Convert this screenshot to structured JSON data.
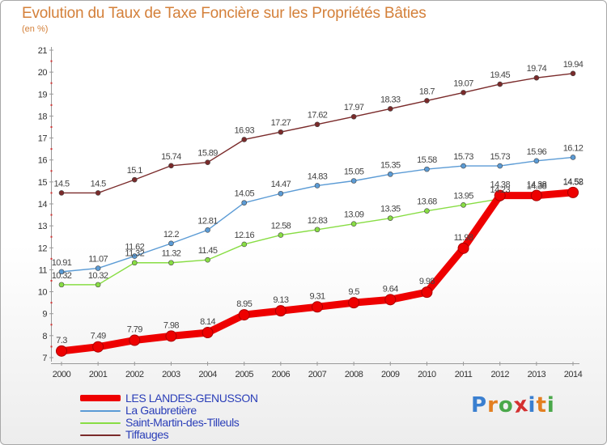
{
  "chart_data": {
    "type": "line",
    "title": "Evolution du Taux de Taxe Foncière sur les Propriétés Bâties",
    "subtitle": "(en %)",
    "x": [
      "2000",
      "2001",
      "2002",
      "2003",
      "2004",
      "2005",
      "2006",
      "2007",
      "2008",
      "2009",
      "2010",
      "2011",
      "2012",
      "2013",
      "2014"
    ],
    "ylim": [
      7,
      21
    ],
    "yticks": [
      7,
      8,
      9,
      10,
      11,
      12,
      13,
      14,
      15,
      16,
      17,
      18,
      19,
      20,
      21
    ],
    "grid": false,
    "legend_position": "bottom-left",
    "series": [
      {
        "name": "LES LANDES-GENUSSON",
        "color": "#ee0000",
        "values": [
          7.3,
          7.49,
          7.79,
          7.98,
          8.14,
          8.95,
          9.13,
          9.31,
          9.5,
          9.64,
          9.98,
          11.98,
          14.38,
          14.38,
          14.52
        ],
        "labels": [
          "7.3",
          "7.49",
          "7.79",
          "7.98",
          "8.14",
          "8.95",
          "9.13",
          "9.31",
          "9.5",
          "9.64",
          "9.98",
          "11.98",
          "14.38",
          "14.38",
          "14.52"
        ]
      },
      {
        "name": "La Gaubretière",
        "color": "#5b9bd5",
        "values": [
          10.91,
          11.07,
          11.62,
          12.2,
          12.81,
          14.05,
          14.47,
          14.83,
          15.05,
          15.35,
          15.58,
          15.73,
          15.73,
          15.96,
          16.12
        ],
        "labels": [
          "10.91",
          "11.07",
          "11.62",
          "12.2",
          "12.81",
          "14.05",
          "14.47",
          "14.83",
          "15.05",
          "15.35",
          "15.58",
          "15.73",
          "15.73",
          "15.96",
          "16.12"
        ]
      },
      {
        "name": "Saint-Martin-des-Tilleuls",
        "color": "#88dd44",
        "values": [
          10.32,
          10.32,
          11.32,
          11.32,
          11.45,
          12.16,
          12.58,
          12.83,
          13.09,
          13.35,
          13.68,
          13.95,
          14.23,
          14.38,
          14.58
        ],
        "labels": [
          "10.32",
          "10.32",
          "11.32",
          "11.32",
          "11.45",
          "12.16",
          "12.58",
          "12.83",
          "13.09",
          "13.35",
          "13.68",
          "13.95",
          "14.23",
          "14.38",
          "14.58"
        ]
      },
      {
        "name": "Tiffauges",
        "color": "#7a2a2a",
        "values": [
          14.5,
          14.5,
          15.1,
          15.74,
          15.89,
          16.93,
          17.27,
          17.62,
          17.97,
          18.33,
          18.7,
          19.07,
          19.45,
          19.74,
          19.94
        ],
        "labels": [
          "14.5",
          "14.5",
          "15.1",
          "15.74",
          "15.89",
          "16.93",
          "17.27",
          "17.62",
          "17.97",
          "18.33",
          "18.7",
          "19.07",
          "19.45",
          "19.74",
          "19.94"
        ]
      }
    ]
  },
  "logo": {
    "text": "Proxiti",
    "letter_colors": [
      "#3a7fd0",
      "#e37f20",
      "#4aa84a",
      "#d43030",
      "#3a7fd0",
      "#e37f20",
      "#4aa84a"
    ]
  }
}
